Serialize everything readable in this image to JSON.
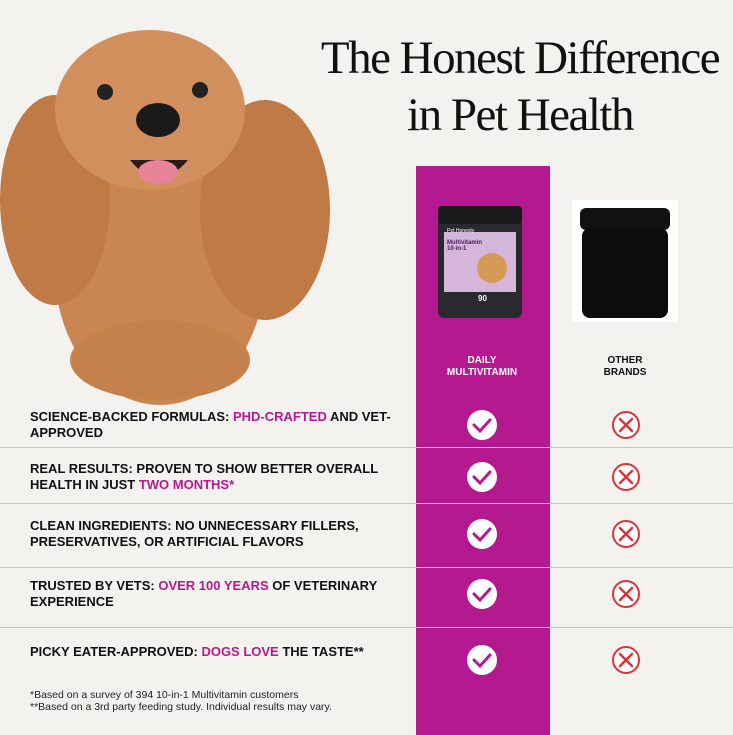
{
  "header": {
    "title_lines": [
      "The Honest Difference",
      "in Pet Health"
    ]
  },
  "product": {
    "brand": "Pet Honesty",
    "name": "Multivitamin 10-in-1",
    "count": "90"
  },
  "columns": [
    "DAILY MULTIVITAMIN",
    "OTHER BRANDS"
  ],
  "rows": [
    [
      {
        "text": "SCIENCE-BACKED FORMULAS: "
      },
      {
        "text": "PHD-CRAFTED",
        "highlight": true
      },
      {
        "text": " AND VET-APPROVED"
      }
    ],
    [
      {
        "text": "REAL RESULTS: PROVEN TO SHOW BETTER OVERALL HEALTH IN JUST "
      },
      {
        "text": "TWO MONTHS*",
        "highlight": true
      }
    ],
    [
      {
        "text": "CLEAN INGREDIENTS: NO UNNECESSARY FILLERS, PRESERVATIVES, OR ARTIFICIAL FLAVORS"
      }
    ],
    [
      {
        "text": "TRUSTED BY VETS: "
      },
      {
        "text": "OVER 100 YEARS",
        "highlight": true
      },
      {
        "text": " OF VETERINARY EXPERIENCE"
      }
    ],
    [
      {
        "text": "PICKY EATER-APPROVED: "
      },
      {
        "text": "DOGS LOVE",
        "highlight": true
      },
      {
        "text": " THE TASTE**"
      }
    ]
  ],
  "footnotes": [
    "*Based on a survey of 394 10-in-1 Multivitamin customers",
    "**Based on a 3rd party feeding study. Individual results may vary."
  ]
}
